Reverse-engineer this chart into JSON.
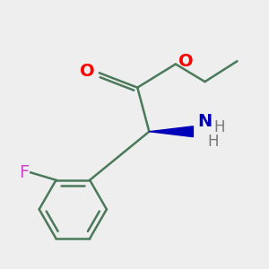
{
  "background_color": "#eeeeee",
  "bond_color": "#4a7a5a",
  "bond_width": 1.8,
  "atom_colors": {
    "O": "#ff0000",
    "N": "#0000bb",
    "F": "#cc44cc",
    "C": "#4a7a5a"
  },
  "font_size_atoms": 14,
  "font_size_H": 12,
  "wedge_color": "#0000bb"
}
